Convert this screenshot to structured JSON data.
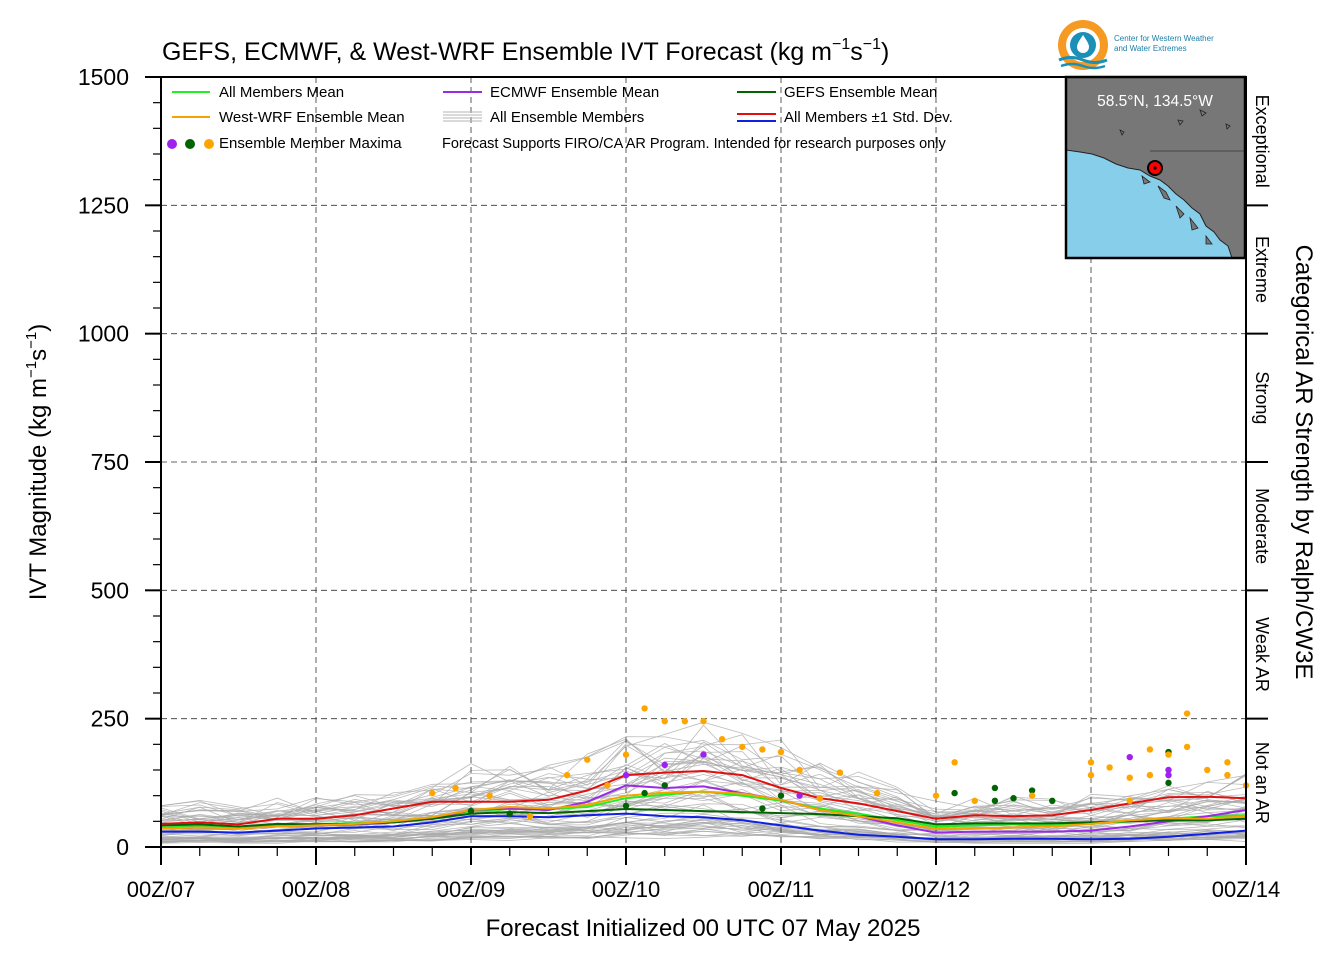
{
  "chart_data": {
    "type": "line",
    "title": "GEFS, ECMWF, & West-WRF Ensemble IVT Forecast (kg m",
    "title_sup1": "−1",
    "title_mid": "s",
    "title_sup2": "−1",
    "title_end": ")",
    "ylabel": "IVT Magnitude (kg m",
    "ylabel_sup1": "−1",
    "ylabel_mid": "s",
    "ylabel_sup2": "−1",
    "ylabel_end": ")",
    "xlabel": "Forecast Initialized 00 UTC 07 May 2025",
    "right_label": "Categorical AR Strength by Ralph/CW3E",
    "ylim": [
      0,
      1500
    ],
    "xlim": [
      0,
      7
    ],
    "grid": true,
    "y_ticks": [
      0,
      250,
      500,
      750,
      1000,
      1250,
      1500
    ],
    "x_ticks": [
      0,
      1,
      2,
      3,
      4,
      5,
      6,
      7
    ],
    "x_tick_labels": [
      "00Z/07",
      "00Z/08",
      "00Z/09",
      "00Z/10",
      "00Z/11",
      "00Z/12",
      "00Z/13",
      "00Z/14"
    ],
    "categories": [
      {
        "label": "Not an AR",
        "min": 0,
        "max": 250
      },
      {
        "label": "Weak AR",
        "min": 250,
        "max": 500
      },
      {
        "label": "Moderate",
        "min": 500,
        "max": 750
      },
      {
        "label": "Strong",
        "min": 750,
        "max": 1000
      },
      {
        "label": "Extreme",
        "min": 1000,
        "max": 1250
      },
      {
        "label": "Exceptional",
        "min": 1250,
        "max": 1500
      }
    ],
    "legend": {
      "placement": "top-left",
      "entries": [
        {
          "label": "All Members Mean",
          "color": "#22ee22"
        },
        {
          "label": "ECMWF Ensemble Mean",
          "color": "#9a2ae6"
        },
        {
          "label": "GEFS Ensemble Mean",
          "color": "#006400"
        },
        {
          "label": "West-WRF Ensemble Mean",
          "color": "#f4a300"
        },
        {
          "label": "All Ensemble Members",
          "color": "#aaaaaa"
        },
        {
          "label": "All Members ±1 Std. Dev.",
          "color": "#e01010",
          "color2": "#1020e0"
        },
        {
          "label": "Ensemble Member Maxima",
          "dots": [
            "#a020f0",
            "#006400",
            "#ffa500"
          ]
        }
      ],
      "note": "Forecast Supports FIRO/CA AR Program. Intended for research purposes only"
    },
    "x": [
      0,
      0.25,
      0.5,
      0.75,
      1.0,
      1.25,
      1.5,
      1.75,
      2.0,
      2.25,
      2.5,
      2.75,
      3.0,
      3.25,
      3.5,
      3.75,
      4.0,
      4.25,
      4.5,
      4.75,
      5.0,
      5.25,
      5.5,
      5.75,
      6.0,
      6.25,
      6.5,
      6.75,
      7.0
    ],
    "series": [
      {
        "name": "All Members Mean",
        "color": "#22ee22",
        "values": [
          38,
          40,
          38,
          42,
          45,
          46,
          50,
          56,
          70,
          74,
          74,
          78,
          95,
          102,
          108,
          100,
          90,
          75,
          65,
          52,
          40,
          42,
          44,
          42,
          45,
          50,
          55,
          60,
          62
        ]
      },
      {
        "name": "ECMWF Ensemble Mean",
        "color": "#9a2ae6",
        "values": [
          36,
          38,
          36,
          40,
          42,
          44,
          48,
          55,
          72,
          75,
          72,
          88,
          120,
          115,
          118,
          105,
          92,
          72,
          60,
          42,
          28,
          30,
          30,
          30,
          32,
          40,
          50,
          60,
          72
        ]
      },
      {
        "name": "GEFS Ensemble Mean",
        "color": "#006400",
        "values": [
          42,
          44,
          40,
          45,
          44,
          45,
          48,
          55,
          65,
          68,
          66,
          70,
          74,
          72,
          70,
          68,
          66,
          64,
          60,
          56,
          44,
          46,
          46,
          46,
          48,
          50,
          52,
          52,
          55
        ]
      },
      {
        "name": "West-WRF Ensemble Mean",
        "color": "#f4a300",
        "values": [
          36,
          38,
          36,
          40,
          42,
          45,
          50,
          58,
          72,
          78,
          75,
          82,
          100,
          106,
          108,
          104,
          92,
          72,
          60,
          48,
          35,
          36,
          38,
          40,
          45,
          52,
          56,
          55,
          60
        ]
      },
      {
        "name": "All Members +1 Std. Dev.",
        "color": "#e01010",
        "values": [
          45,
          48,
          44,
          55,
          55,
          62,
          75,
          88,
          88,
          88,
          92,
          110,
          140,
          145,
          148,
          140,
          115,
          95,
          85,
          70,
          55,
          62,
          60,
          62,
          72,
          85,
          97,
          98,
          95
        ]
      },
      {
        "name": "All Members −1 Std. Dev.",
        "color": "#1020e0",
        "values": [
          30,
          30,
          28,
          32,
          36,
          38,
          40,
          48,
          60,
          60,
          58,
          62,
          65,
          60,
          58,
          52,
          42,
          32,
          24,
          20,
          15,
          15,
          16,
          16,
          15,
          16,
          20,
          26,
          32
        ]
      }
    ],
    "ensemble_members": {
      "color": "#aaaaaa",
      "count": 60,
      "spread_low_pct": 0.2,
      "spread_high_pct": 1.9
    },
    "maxima": [
      {
        "x": 1.75,
        "y": 105,
        "color": "#ffa500"
      },
      {
        "x": 1.9,
        "y": 115,
        "color": "#ffa500"
      },
      {
        "x": 2.0,
        "y": 70,
        "color": "#006400"
      },
      {
        "x": 2.12,
        "y": 100,
        "color": "#ffa500"
      },
      {
        "x": 2.25,
        "y": 65,
        "color": "#006400"
      },
      {
        "x": 2.38,
        "y": 60,
        "color": "#ffa500"
      },
      {
        "x": 2.62,
        "y": 140,
        "color": "#ffa500"
      },
      {
        "x": 2.75,
        "y": 170,
        "color": "#ffa500"
      },
      {
        "x": 2.88,
        "y": 120,
        "color": "#ffa500"
      },
      {
        "x": 3.0,
        "y": 180,
        "color": "#ffa500"
      },
      {
        "x": 3.0,
        "y": 140,
        "color": "#a020f0"
      },
      {
        "x": 3.0,
        "y": 80,
        "color": "#006400"
      },
      {
        "x": 3.12,
        "y": 270,
        "color": "#ffa500"
      },
      {
        "x": 3.12,
        "y": 105,
        "color": "#006400"
      },
      {
        "x": 3.25,
        "y": 245,
        "color": "#ffa500"
      },
      {
        "x": 3.25,
        "y": 120,
        "color": "#006400"
      },
      {
        "x": 3.25,
        "y": 160,
        "color": "#a020f0"
      },
      {
        "x": 3.38,
        "y": 245,
        "color": "#ffa500"
      },
      {
        "x": 3.5,
        "y": 245,
        "color": "#ffa500"
      },
      {
        "x": 3.5,
        "y": 180,
        "color": "#a020f0"
      },
      {
        "x": 3.62,
        "y": 210,
        "color": "#ffa500"
      },
      {
        "x": 3.75,
        "y": 195,
        "color": "#ffa500"
      },
      {
        "x": 3.88,
        "y": 190,
        "color": "#ffa500"
      },
      {
        "x": 3.88,
        "y": 75,
        "color": "#006400"
      },
      {
        "x": 4.0,
        "y": 185,
        "color": "#ffa500"
      },
      {
        "x": 4.0,
        "y": 100,
        "color": "#006400"
      },
      {
        "x": 4.12,
        "y": 100,
        "color": "#a020f0"
      },
      {
        "x": 4.12,
        "y": 150,
        "color": "#ffa500"
      },
      {
        "x": 4.25,
        "y": 95,
        "color": "#ffa500"
      },
      {
        "x": 4.38,
        "y": 145,
        "color": "#ffa500"
      },
      {
        "x": 4.62,
        "y": 105,
        "color": "#ffa500"
      },
      {
        "x": 5.0,
        "y": 100,
        "color": "#ffa500"
      },
      {
        "x": 5.12,
        "y": 165,
        "color": "#ffa500"
      },
      {
        "x": 5.12,
        "y": 105,
        "color": "#006400"
      },
      {
        "x": 5.25,
        "y": 90,
        "color": "#ffa500"
      },
      {
        "x": 5.38,
        "y": 115,
        "color": "#006400"
      },
      {
        "x": 5.38,
        "y": 90,
        "color": "#006400"
      },
      {
        "x": 5.5,
        "y": 95,
        "color": "#006400"
      },
      {
        "x": 5.62,
        "y": 110,
        "color": "#006400"
      },
      {
        "x": 5.62,
        "y": 100,
        "color": "#ffa500"
      },
      {
        "x": 5.75,
        "y": 90,
        "color": "#006400"
      },
      {
        "x": 6.0,
        "y": 165,
        "color": "#ffa500"
      },
      {
        "x": 6.0,
        "y": 140,
        "color": "#ffa500"
      },
      {
        "x": 6.12,
        "y": 155,
        "color": "#ffa500"
      },
      {
        "x": 6.25,
        "y": 175,
        "color": "#a020f0"
      },
      {
        "x": 6.25,
        "y": 135,
        "color": "#ffa500"
      },
      {
        "x": 6.25,
        "y": 90,
        "color": "#ffa500"
      },
      {
        "x": 6.38,
        "y": 190,
        "color": "#ffa500"
      },
      {
        "x": 6.38,
        "y": 140,
        "color": "#ffa500"
      },
      {
        "x": 6.5,
        "y": 185,
        "color": "#006400"
      },
      {
        "x": 6.5,
        "y": 180,
        "color": "#ffa500"
      },
      {
        "x": 6.5,
        "y": 150,
        "color": "#a020f0"
      },
      {
        "x": 6.5,
        "y": 140,
        "color": "#a020f0"
      },
      {
        "x": 6.5,
        "y": 125,
        "color": "#006400"
      },
      {
        "x": 6.62,
        "y": 260,
        "color": "#ffa500"
      },
      {
        "x": 6.62,
        "y": 195,
        "color": "#ffa500"
      },
      {
        "x": 6.75,
        "y": 150,
        "color": "#ffa500"
      },
      {
        "x": 6.88,
        "y": 140,
        "color": "#ffa500"
      },
      {
        "x": 6.88,
        "y": 165,
        "color": "#ffa500"
      },
      {
        "x": 7.0,
        "y": 120,
        "color": "#ffa500"
      }
    ]
  },
  "inset_map": {
    "label": "58.5°N, 134.5°W",
    "land_color": "#777777",
    "ocean_color": "#87ceeb",
    "marker_color": "#ff0000"
  },
  "logo": {
    "line1": "Center for Western Weather",
    "line2": "and Water Extremes",
    "color_outer": "#f59a23",
    "color_inner": "#1a8fb8"
  }
}
